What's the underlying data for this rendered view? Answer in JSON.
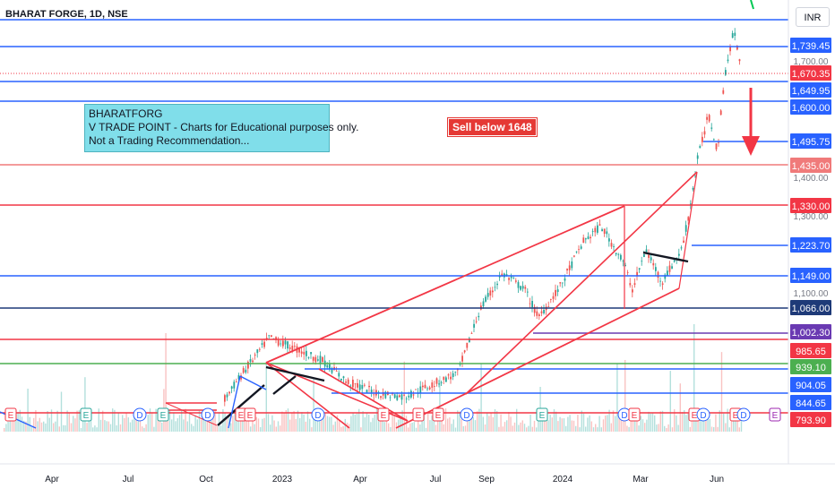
{
  "header": {
    "title": "BHARAT FORGE, 1D, NSE",
    "currency": "INR"
  },
  "annotation": {
    "lines": [
      "BHARATFORG",
      "V TRADE POINT - Charts for Educational purposes only.",
      "Not a Trading Recommendation..."
    ],
    "sell_label": "Sell below 1648"
  },
  "chart_data": {
    "type": "candlestick",
    "symbol": "BHARAT FORGE",
    "interval": "1D",
    "exchange": "NSE",
    "x_ticks": [
      "Apr",
      "Jul",
      "Oct",
      "2023",
      "Apr",
      "Jul",
      "Sep",
      "2024",
      "Mar",
      "Jun"
    ],
    "y_ticks": [
      "1,700.00",
      "1,400.00",
      "1,300.00",
      "1,100.00"
    ],
    "ylim": [
      780,
      1780
    ],
    "last_price": "1,670.35",
    "horizontal_levels": [
      {
        "label": "1,739.45",
        "value": 1739.45,
        "color": "#2962ff"
      },
      {
        "label": "1,670.35",
        "value": 1670.35,
        "color": "#f23645"
      },
      {
        "label": "1,649.95",
        "value": 1649.95,
        "color": "#2962ff"
      },
      {
        "label": "1,600.00",
        "value": 1600.0,
        "color": "#2962ff"
      },
      {
        "label": "1,495.75",
        "value": 1495.75,
        "color": "#2962ff"
      },
      {
        "label": "1,435.00",
        "value": 1435.0,
        "color": "#f07a7a"
      },
      {
        "label": "1,330.00",
        "value": 1330.0,
        "color": "#f23645"
      },
      {
        "label": "1,223.70",
        "value": 1223.7,
        "color": "#2962ff"
      },
      {
        "label": "1,149.00",
        "value": 1149.0,
        "color": "#2962ff"
      },
      {
        "label": "1,066.00",
        "value": 1066.0,
        "color": "#1e3a78"
      },
      {
        "label": "1,002.30",
        "value": 1002.3,
        "color": "#6a3ab2"
      },
      {
        "label": "985.65",
        "value": 985.65,
        "color": "#f23645"
      },
      {
        "label": "939.10",
        "value": 939.1,
        "color": "#4caf50"
      },
      {
        "label": "904.05",
        "value": 904.05,
        "color": "#2962ff"
      },
      {
        "label": "844.65",
        "value": 844.65,
        "color": "#2962ff"
      },
      {
        "label": "793.90",
        "value": 793.9,
        "color": "#f23645"
      }
    ],
    "event_markers": [
      "E",
      "E",
      "D",
      "E",
      "D",
      "E",
      "E",
      "D",
      "E",
      "E",
      "E",
      "D",
      "E",
      "D",
      "E",
      "E",
      "D",
      "E",
      "D",
      "E",
      "D",
      "E"
    ],
    "grid": false
  }
}
